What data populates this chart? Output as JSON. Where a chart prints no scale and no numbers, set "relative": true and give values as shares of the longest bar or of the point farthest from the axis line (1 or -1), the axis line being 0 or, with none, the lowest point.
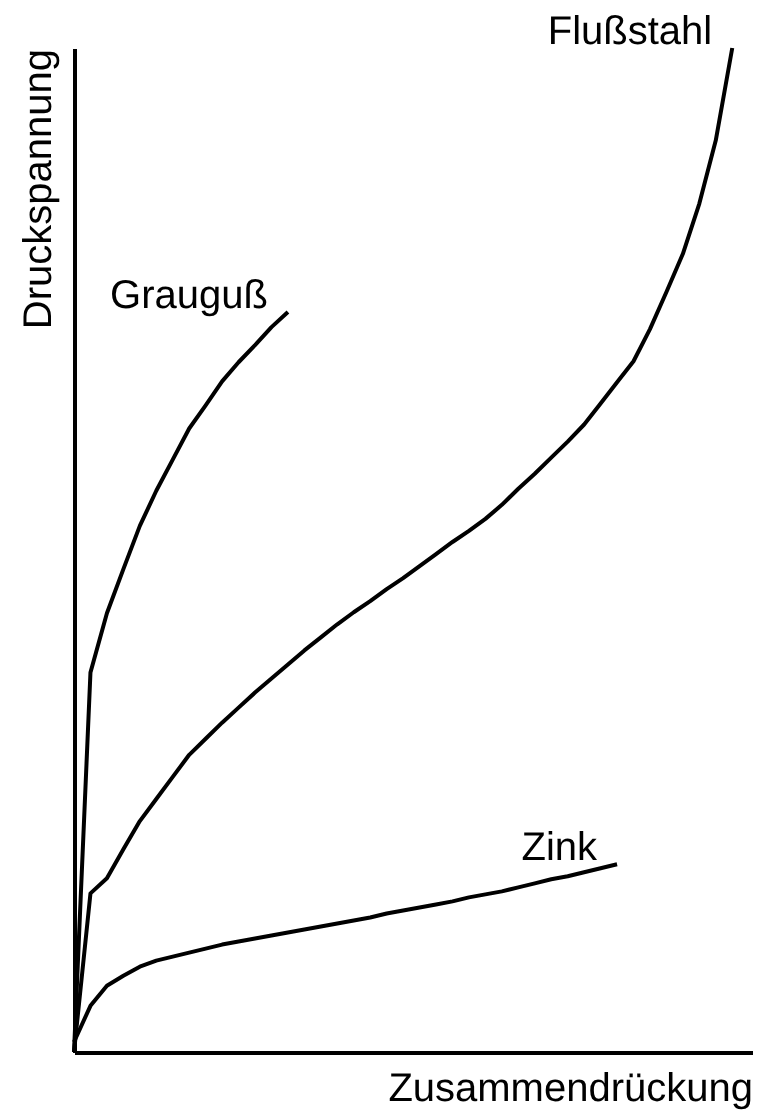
{
  "chart_data": {
    "type": "line",
    "relative": true,
    "xlabel": "Zusammendrückung",
    "ylabel": "Druckspannung",
    "marker": "none",
    "line_style": "solid",
    "legend": false,
    "categories": [
      null,
      null,
      null,
      null,
      null,
      null,
      null,
      null,
      null,
      null,
      null,
      null,
      null,
      null,
      null,
      null,
      null,
      null,
      null,
      null,
      null,
      null,
      null,
      null,
      null,
      null,
      null,
      null,
      null,
      null,
      null,
      null,
      null,
      null,
      null,
      null,
      null,
      null,
      null,
      null,
      null
    ],
    "series": [
      {
        "name": "Grauguß",
        "color": "#000000",
        "values": [
          0,
          0.378,
          0.437,
          0.481,
          0.524,
          0.559,
          0.59,
          0.621,
          0.644,
          0.668,
          0.687,
          0.704,
          0.722,
          0.737,
          null,
          null,
          null,
          null,
          null,
          null,
          null,
          null,
          null,
          null,
          null,
          null,
          null,
          null,
          null,
          null,
          null,
          null,
          null,
          null,
          null,
          null,
          null,
          null,
          null,
          null,
          null
        ]
      },
      {
        "name": "Flußstahl",
        "color": "#000000",
        "values": [
          0,
          0.158,
          0.173,
          0.202,
          0.23,
          0.252,
          0.274,
          0.296,
          0.312,
          0.328,
          0.343,
          0.358,
          0.372,
          0.386,
          0.4,
          0.413,
          0.426,
          0.438,
          0.449,
          0.461,
          0.472,
          0.484,
          0.496,
          0.508,
          0.519,
          0.531,
          0.545,
          0.561,
          0.576,
          0.592,
          0.608,
          0.625,
          0.646,
          0.667,
          0.688,
          0.72,
          0.757,
          0.795,
          0.845,
          0.908,
          1.0
        ]
      },
      {
        "name": "Zink",
        "color": "#000000",
        "values": [
          0.01,
          0.046,
          0.066,
          0.076,
          0.085,
          0.091,
          0.095,
          0.099,
          0.103,
          0.107,
          0.11,
          0.113,
          0.116,
          0.119,
          0.122,
          0.125,
          0.128,
          0.131,
          0.134,
          0.138,
          0.141,
          0.144,
          0.147,
          0.15,
          0.154,
          0.157,
          0.16,
          0.164,
          0.168,
          0.172,
          0.175,
          0.179,
          0.183,
          0.187,
          null,
          null,
          null,
          null,
          null,
          null,
          null
        ]
      }
    ]
  }
}
